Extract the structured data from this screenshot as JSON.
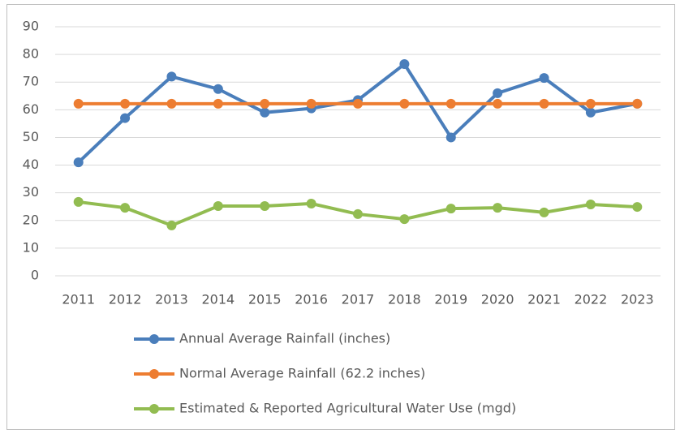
{
  "chart_data": {
    "type": "line",
    "categories": [
      "2011",
      "2012",
      "2013",
      "2014",
      "2015",
      "2016",
      "2017",
      "2018",
      "2019",
      "2020",
      "2021",
      "2022",
      "2023"
    ],
    "series": [
      {
        "name": "Annual Average Rainfall (inches)",
        "color": "#4a7ebb",
        "values": [
          41,
          57,
          72,
          67.5,
          59,
          60.5,
          63.5,
          76.5,
          50,
          66,
          71.5,
          59,
          62.2
        ]
      },
      {
        "name": "Normal Average Rainfall (62.2 inches)",
        "color": "#ed7d31",
        "values": [
          62.2,
          62.2,
          62.2,
          62.2,
          62.2,
          62.2,
          62.2,
          62.2,
          62.2,
          62.2,
          62.2,
          62.2,
          62.2
        ]
      },
      {
        "name": "Estimated & Reported Agricultural Water Use (mgd)",
        "color": "#92bc51",
        "values": [
          26.7,
          24.6,
          18.2,
          25.2,
          25.2,
          26.1,
          22.3,
          20.5,
          24.3,
          24.6,
          22.9,
          25.8,
          24.9
        ]
      }
    ],
    "ylim": [
      0,
      90
    ],
    "yticks": [
      0,
      10,
      20,
      30,
      40,
      50,
      60,
      70,
      80,
      90
    ],
    "grid": true,
    "legend": "bottom"
  }
}
